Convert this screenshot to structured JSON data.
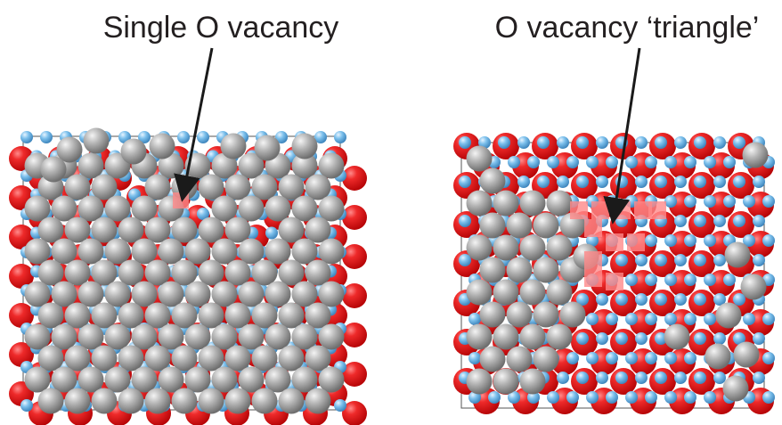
{
  "panels": [
    {
      "id": "single",
      "title": "Single O vacancy"
    },
    {
      "id": "triangle",
      "title": "O vacancy ‘triangle’"
    }
  ],
  "colors": {
    "oxygen": "#e8151b",
    "metal_small": "#6fb6e6",
    "adatom": "#a9a9a9",
    "vacancy_highlight": "#ff8a8a",
    "arrow": "#1a1a1a",
    "text": "#231f20"
  }
}
